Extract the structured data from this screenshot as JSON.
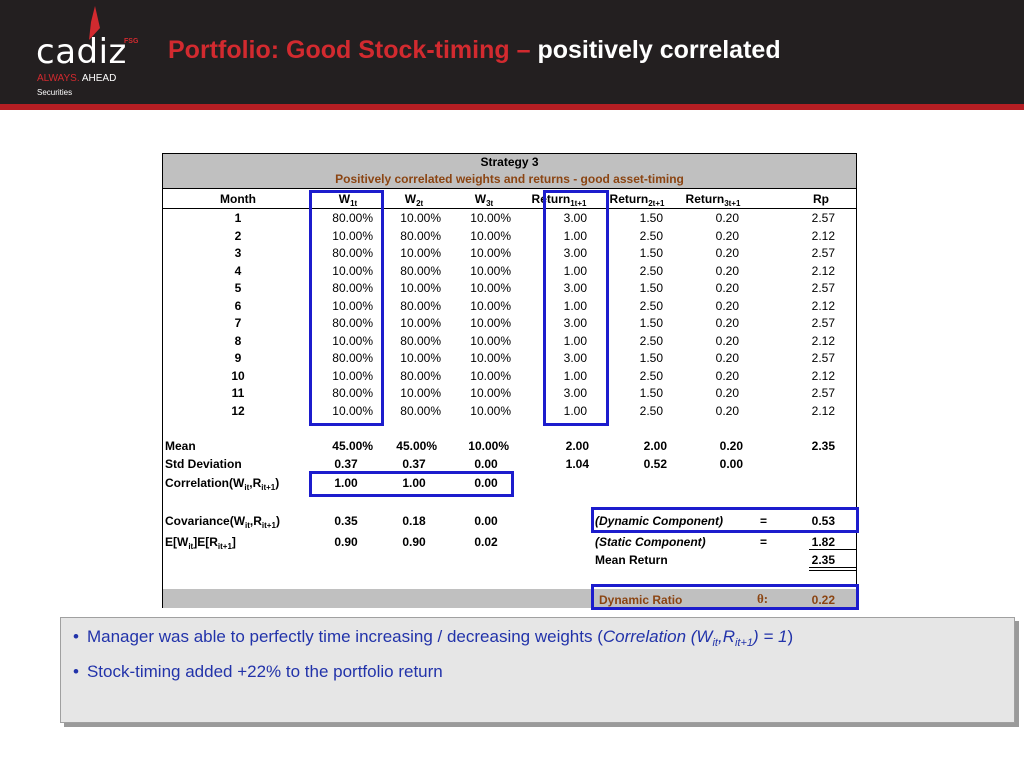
{
  "header": {
    "logo_word": "cadiz",
    "logo_fsg": "FSG",
    "tagline_red": "ALWAYS.",
    "tagline_white": "AHEAD",
    "logo_sub": "Securities",
    "title_red": "Portfolio: Good Stock-timing –",
    "title_white": "positively correlated"
  },
  "table": {
    "strategy": "Strategy 3",
    "subtitle": "Positively correlated weights and returns - good asset-timing",
    "headers": {
      "month": "Month",
      "w1": "W",
      "w1_sub": "1t",
      "w2": "W",
      "w2_sub": "2t",
      "w3": "W",
      "w3_sub": "3t",
      "r1": "Return",
      "r1_sub": "1t+1",
      "r2": "Return",
      "r2_sub": "2t+1",
      "r3": "Return",
      "r3_sub": "3t+1",
      "rp": "Rp"
    },
    "rows": [
      [
        "1",
        "80.00%",
        "10.00%",
        "10.00%",
        "3.00",
        "1.50",
        "0.20",
        "2.57"
      ],
      [
        "2",
        "10.00%",
        "80.00%",
        "10.00%",
        "1.00",
        "2.50",
        "0.20",
        "2.12"
      ],
      [
        "3",
        "80.00%",
        "10.00%",
        "10.00%",
        "3.00",
        "1.50",
        "0.20",
        "2.57"
      ],
      [
        "4",
        "10.00%",
        "80.00%",
        "10.00%",
        "1.00",
        "2.50",
        "0.20",
        "2.12"
      ],
      [
        "5",
        "80.00%",
        "10.00%",
        "10.00%",
        "3.00",
        "1.50",
        "0.20",
        "2.57"
      ],
      [
        "6",
        "10.00%",
        "80.00%",
        "10.00%",
        "1.00",
        "2.50",
        "0.20",
        "2.12"
      ],
      [
        "7",
        "80.00%",
        "10.00%",
        "10.00%",
        "3.00",
        "1.50",
        "0.20",
        "2.57"
      ],
      [
        "8",
        "10.00%",
        "80.00%",
        "10.00%",
        "1.00",
        "2.50",
        "0.20",
        "2.12"
      ],
      [
        "9",
        "80.00%",
        "10.00%",
        "10.00%",
        "3.00",
        "1.50",
        "0.20",
        "2.57"
      ],
      [
        "10",
        "10.00%",
        "80.00%",
        "10.00%",
        "1.00",
        "2.50",
        "0.20",
        "2.12"
      ],
      [
        "11",
        "80.00%",
        "10.00%",
        "10.00%",
        "3.00",
        "1.50",
        "0.20",
        "2.57"
      ],
      [
        "12",
        "10.00%",
        "80.00%",
        "10.00%",
        "1.00",
        "2.50",
        "0.20",
        "2.12"
      ]
    ],
    "mean": {
      "label": "Mean",
      "w1": "45.00%",
      "w2": "45.00%",
      "w3": "10.00%",
      "r1": "2.00",
      "r2": "2.00",
      "r3": "0.20",
      "rp": "2.35"
    },
    "std": {
      "label": "Std Deviation",
      "w1": "0.37",
      "w2": "0.37",
      "w3": "0.00",
      "r1": "1.04",
      "r2": "0.52",
      "r3": "0.00"
    },
    "corr": {
      "label": "Correlation(W",
      "sub1": "it",
      "mid": ",R",
      "sub2": "it+1",
      "end": ")",
      "w1": "1.00",
      "w2": "1.00",
      "w3": "0.00"
    },
    "cov": {
      "label": "Covariance(W",
      "sub1": "it",
      "mid": ",R",
      "sub2": "it+1",
      "end": ")",
      "w1": "0.35",
      "w2": "0.18",
      "w3": "0.00"
    },
    "ee": {
      "label": "E[W",
      "sub1": "it",
      "mid": "]E[R",
      "sub2": "it+1",
      "end": "]",
      "w1": "0.90",
      "w2": "0.90",
      "w3": "0.02"
    },
    "dynamic": {
      "label": "(Dynamic Component)",
      "eq": "=",
      "value": "0.53"
    },
    "static": {
      "label": "(Static Component)",
      "eq": "=",
      "value": "1.82"
    },
    "mean_return": {
      "label": "Mean Return",
      "value": "2.35"
    },
    "ratio": {
      "label": "Dynamic Ratio",
      "symbol": "θ:",
      "value": "0.22"
    }
  },
  "notes": {
    "b1_pre": "Manager was able to perfectly time increasing / decreasing weights (",
    "b1_it1": "Correlation (W",
    "b1_sub1": "it",
    "b1_it2": ",R",
    "b1_sub2": "it+1",
    "b1_it3": ") = 1",
    "b1_post": ")",
    "b2": "Stock-timing added +22% to the portfolio return"
  },
  "colors": {
    "header_bg": "#231f20",
    "accent_red": "#d22a2f",
    "highlight_blue": "#1c1ccd",
    "subtitle_brown": "#8b4513",
    "bullet_text": "#2233aa"
  }
}
